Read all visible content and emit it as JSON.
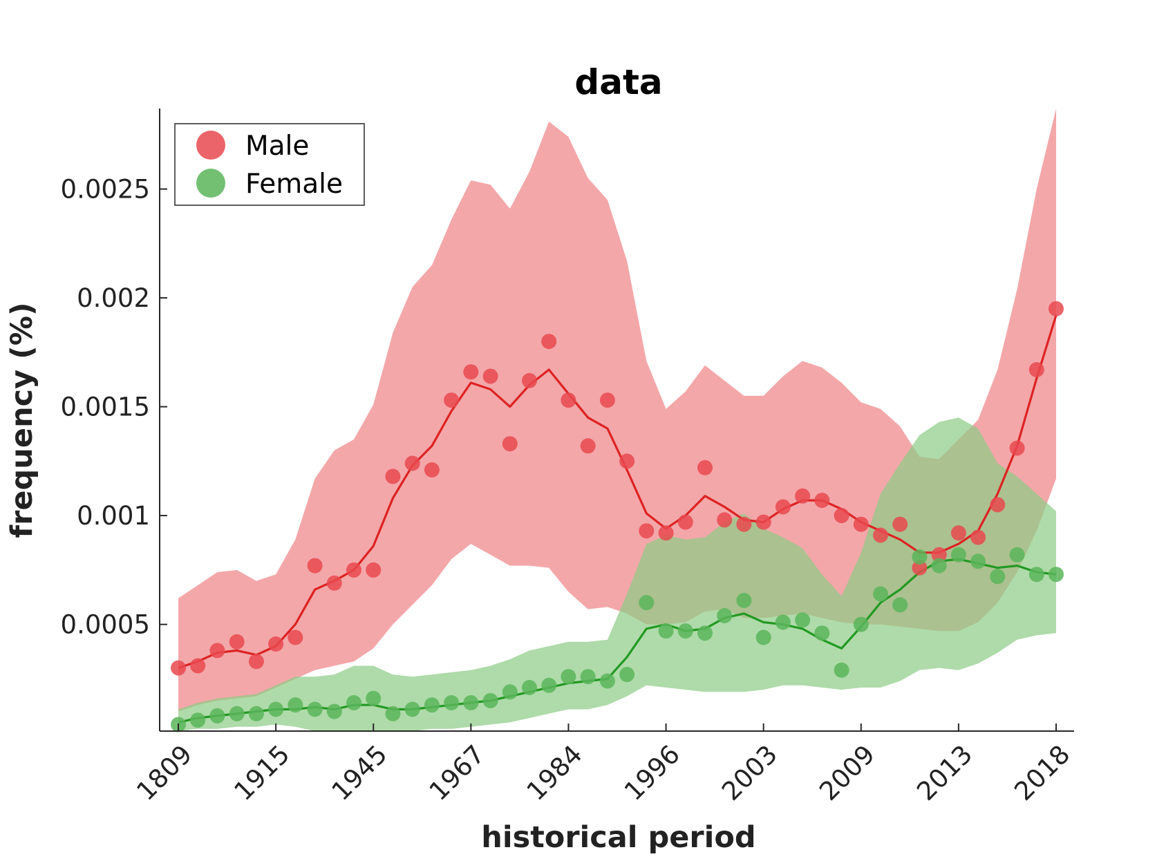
{
  "chart_data": {
    "type": "line",
    "title": "data",
    "xlabel": "historical period",
    "ylabel": "frequency (%)",
    "x_tick_labels": [
      "1809",
      "1915",
      "1945",
      "1967",
      "1984",
      "1996",
      "2003",
      "2009",
      "2013",
      "2018"
    ],
    "x_tick_index": [
      0,
      5,
      10,
      15,
      20,
      25,
      30,
      35,
      40,
      45
    ],
    "y_ticks": [
      0.0005,
      0.001,
      0.0015,
      0.002,
      0.0025
    ],
    "y_tick_labels": [
      "0.0005",
      "0.001",
      "0.0015",
      "0.002",
      "0.0025"
    ],
    "ylim": [
      1e-05,
      0.00287
    ],
    "grid": false,
    "legend_position": "top-left",
    "series": [
      {
        "name": "Male",
        "color": "#e8494f",
        "line_color": "#dd2222",
        "band_color": "#ee8285",
        "points": [
          0.0003,
          0.00031,
          0.00038,
          0.00042,
          0.00033,
          0.00041,
          0.00044,
          0.00077,
          0.00069,
          0.00075,
          0.00075,
          0.00118,
          0.00124,
          0.00121,
          0.00153,
          0.00166,
          0.00164,
          0.00133,
          0.00162,
          0.0018,
          0.00153,
          0.00132,
          0.00153,
          0.00125,
          0.00093,
          0.00092,
          0.00097,
          0.00122,
          0.00098,
          0.00096,
          0.00097,
          0.00104,
          0.00109,
          0.00107,
          0.001,
          0.00096,
          0.00091,
          0.00096,
          0.00076,
          0.00082,
          0.00092,
          0.0009,
          0.00105,
          0.00131,
          0.00167,
          0.00195
        ],
        "fit": [
          0.0003,
          0.00033,
          0.00037,
          0.00038,
          0.00036,
          0.0004,
          0.0005,
          0.00066,
          0.0007,
          0.00075,
          0.00086,
          0.00108,
          0.00123,
          0.00132,
          0.00148,
          0.00161,
          0.00158,
          0.0015,
          0.0016,
          0.00167,
          0.00156,
          0.00145,
          0.0014,
          0.00121,
          0.00101,
          0.00094,
          0.001,
          0.00109,
          0.00104,
          0.00098,
          0.00097,
          0.00103,
          0.00107,
          0.00107,
          0.00103,
          0.00097,
          0.00093,
          0.00089,
          0.00083,
          0.00083,
          0.00087,
          0.00093,
          0.0011,
          0.00132,
          0.00163,
          0.00192
        ],
        "band_upper": [
          0.00062,
          0.00068,
          0.00074,
          0.00075,
          0.0007,
          0.00073,
          0.00089,
          0.00117,
          0.0013,
          0.00135,
          0.00151,
          0.00184,
          0.00205,
          0.00215,
          0.00236,
          0.00254,
          0.00252,
          0.00241,
          0.00258,
          0.00281,
          0.00274,
          0.00255,
          0.00245,
          0.00217,
          0.00171,
          0.00149,
          0.00157,
          0.00169,
          0.00162,
          0.00155,
          0.00155,
          0.00164,
          0.00171,
          0.00168,
          0.00161,
          0.00152,
          0.00149,
          0.00141,
          0.00127,
          0.00126,
          0.00135,
          0.00144,
          0.00167,
          0.00204,
          0.0025,
          0.00287
        ],
        "band_lower": [
          0.0001,
          0.00013,
          0.00015,
          0.00016,
          0.00017,
          0.00021,
          0.00025,
          0.00029,
          0.00031,
          0.00033,
          0.00039,
          0.0005,
          0.00059,
          0.00068,
          0.0008,
          0.00087,
          0.00082,
          0.00077,
          0.00077,
          0.00076,
          0.00065,
          0.00057,
          0.00058,
          0.00055,
          0.0005,
          0.0005,
          0.00051,
          0.00056,
          0.00057,
          0.00053,
          0.00053,
          0.00054,
          0.00055,
          0.00053,
          0.00051,
          0.0005,
          0.0005,
          0.00049,
          0.00048,
          0.00047,
          0.00047,
          0.00051,
          0.0006,
          0.00074,
          0.00093,
          0.00117
        ]
      },
      {
        "name": "Female",
        "color": "#5ab55a",
        "line_color": "#229922",
        "band_color": "#8ccc84",
        "points": [
          4e-05,
          6e-05,
          8e-05,
          9e-05,
          9e-05,
          0.00011,
          0.00013,
          0.00011,
          0.0001,
          0.00014,
          0.00016,
          9e-05,
          0.00011,
          0.00013,
          0.00014,
          0.00014,
          0.00015,
          0.00019,
          0.00021,
          0.00022,
          0.00026,
          0.00026,
          0.00024,
          0.00027,
          0.0006,
          0.00047,
          0.00047,
          0.00046,
          0.00054,
          0.00061,
          0.00044,
          0.00051,
          0.00052,
          0.00046,
          0.00029,
          0.0005,
          0.00064,
          0.00059,
          0.00081,
          0.00077,
          0.00082,
          0.00079,
          0.00072,
          0.00082,
          0.00073,
          0.00073
        ],
        "fit": [
          5e-05,
          7e-05,
          8e-05,
          9e-05,
          0.0001,
          0.00011,
          0.00011,
          0.00012,
          0.00011,
          0.00013,
          0.00013,
          0.00011,
          0.00011,
          0.00012,
          0.00013,
          0.00014,
          0.00015,
          0.00017,
          0.00019,
          0.00021,
          0.00023,
          0.00024,
          0.00025,
          0.00035,
          0.00048,
          0.0005,
          0.00047,
          0.00048,
          0.00053,
          0.00055,
          0.00051,
          0.0005,
          0.00048,
          0.00043,
          0.00039,
          0.00049,
          0.0006,
          0.00066,
          0.00074,
          0.00079,
          0.0008,
          0.00078,
          0.00076,
          0.00077,
          0.00074,
          0.00073
        ],
        "band_upper": [
          0.00011,
          0.00014,
          0.00016,
          0.00017,
          0.00018,
          0.00022,
          0.00026,
          0.00026,
          0.00027,
          0.00031,
          0.00031,
          0.00027,
          0.00026,
          0.00027,
          0.00028,
          0.00029,
          0.00031,
          0.00034,
          0.00038,
          0.0004,
          0.00042,
          0.00042,
          0.00043,
          0.00064,
          0.00087,
          0.00091,
          0.00089,
          0.0009,
          0.00097,
          0.00101,
          0.00094,
          0.0009,
          0.00085,
          0.00073,
          0.00063,
          0.00083,
          0.0011,
          0.00124,
          0.00137,
          0.00143,
          0.00145,
          0.0014,
          0.00124,
          0.00118,
          0.0011,
          0.00102
        ],
        "band_lower": [
          1e-05,
          2e-05,
          2e-05,
          3e-05,
          3e-05,
          4e-05,
          3e-05,
          1e-05,
          1e-05,
          1e-05,
          1e-05,
          1e-05,
          1e-05,
          2e-05,
          2e-05,
          3e-05,
          4e-05,
          5e-05,
          7e-05,
          9e-05,
          0.00011,
          0.00011,
          0.00013,
          0.00017,
          0.00022,
          0.00021,
          0.0002,
          0.00019,
          0.00019,
          0.00019,
          0.0002,
          0.00022,
          0.00022,
          0.00021,
          0.0002,
          0.00021,
          0.00021,
          0.00024,
          0.00029,
          0.0003,
          0.00029,
          0.00032,
          0.00037,
          0.00043,
          0.00045,
          0.00046
        ]
      }
    ]
  }
}
